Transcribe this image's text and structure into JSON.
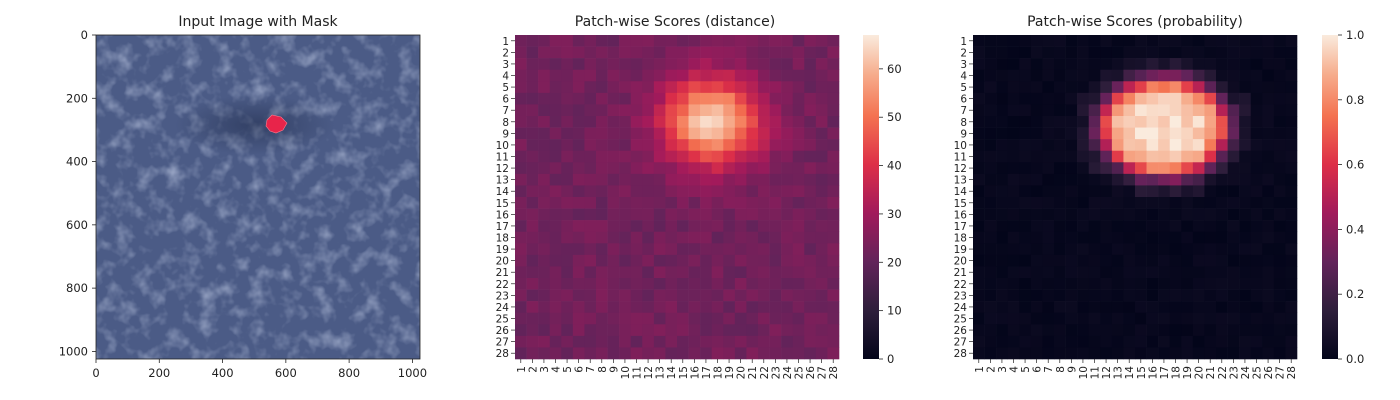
{
  "chart_data": [
    {
      "type": "image",
      "title": "Input Image with Mask",
      "image_description_colors": {
        "background": "#4b5b86",
        "highlight": "#e8244a"
      },
      "mask_center": [
        570,
        270
      ],
      "xlim": [
        0,
        1024
      ],
      "ylim": [
        1024,
        0
      ],
      "xticks": [
        0,
        200,
        400,
        600,
        800,
        1000
      ],
      "yticks": [
        0,
        200,
        400,
        600,
        800,
        1000
      ]
    },
    {
      "type": "heatmap",
      "title": "Patch-wise Scores (distance)",
      "rows": 28,
      "cols": 28,
      "tick_labels": [
        "1",
        "2",
        "3",
        "4",
        "5",
        "6",
        "7",
        "8",
        "9",
        "10",
        "11",
        "12",
        "13",
        "14",
        "15",
        "16",
        "17",
        "18",
        "19",
        "20",
        "21",
        "22",
        "23",
        "24",
        "25",
        "26",
        "27",
        "28"
      ],
      "colorbar": {
        "min": 0,
        "max": 67,
        "ticks": [
          0,
          10,
          20,
          30,
          40,
          50,
          60
        ]
      },
      "background_value": 22,
      "hotspot": {
        "center_row": 8,
        "center_col": 17.5,
        "peak": 67
      }
    },
    {
      "type": "heatmap",
      "title": "Patch-wise Scores (probability)",
      "rows": 28,
      "cols": 28,
      "tick_labels": [
        "1",
        "2",
        "3",
        "4",
        "5",
        "6",
        "7",
        "8",
        "9",
        "10",
        "11",
        "12",
        "13",
        "14",
        "15",
        "16",
        "17",
        "18",
        "19",
        "20",
        "21",
        "22",
        "23",
        "24",
        "25",
        "26",
        "27",
        "28"
      ],
      "colorbar": {
        "min": 0.0,
        "max": 1.0,
        "ticks": [
          "0.0",
          "0.2",
          "0.4",
          "0.6",
          "0.8",
          "1.0"
        ]
      },
      "background_value": 0.0,
      "hotspot": {
        "center_row": 8.5,
        "center_col": 17,
        "peak": 1.0
      }
    }
  ]
}
